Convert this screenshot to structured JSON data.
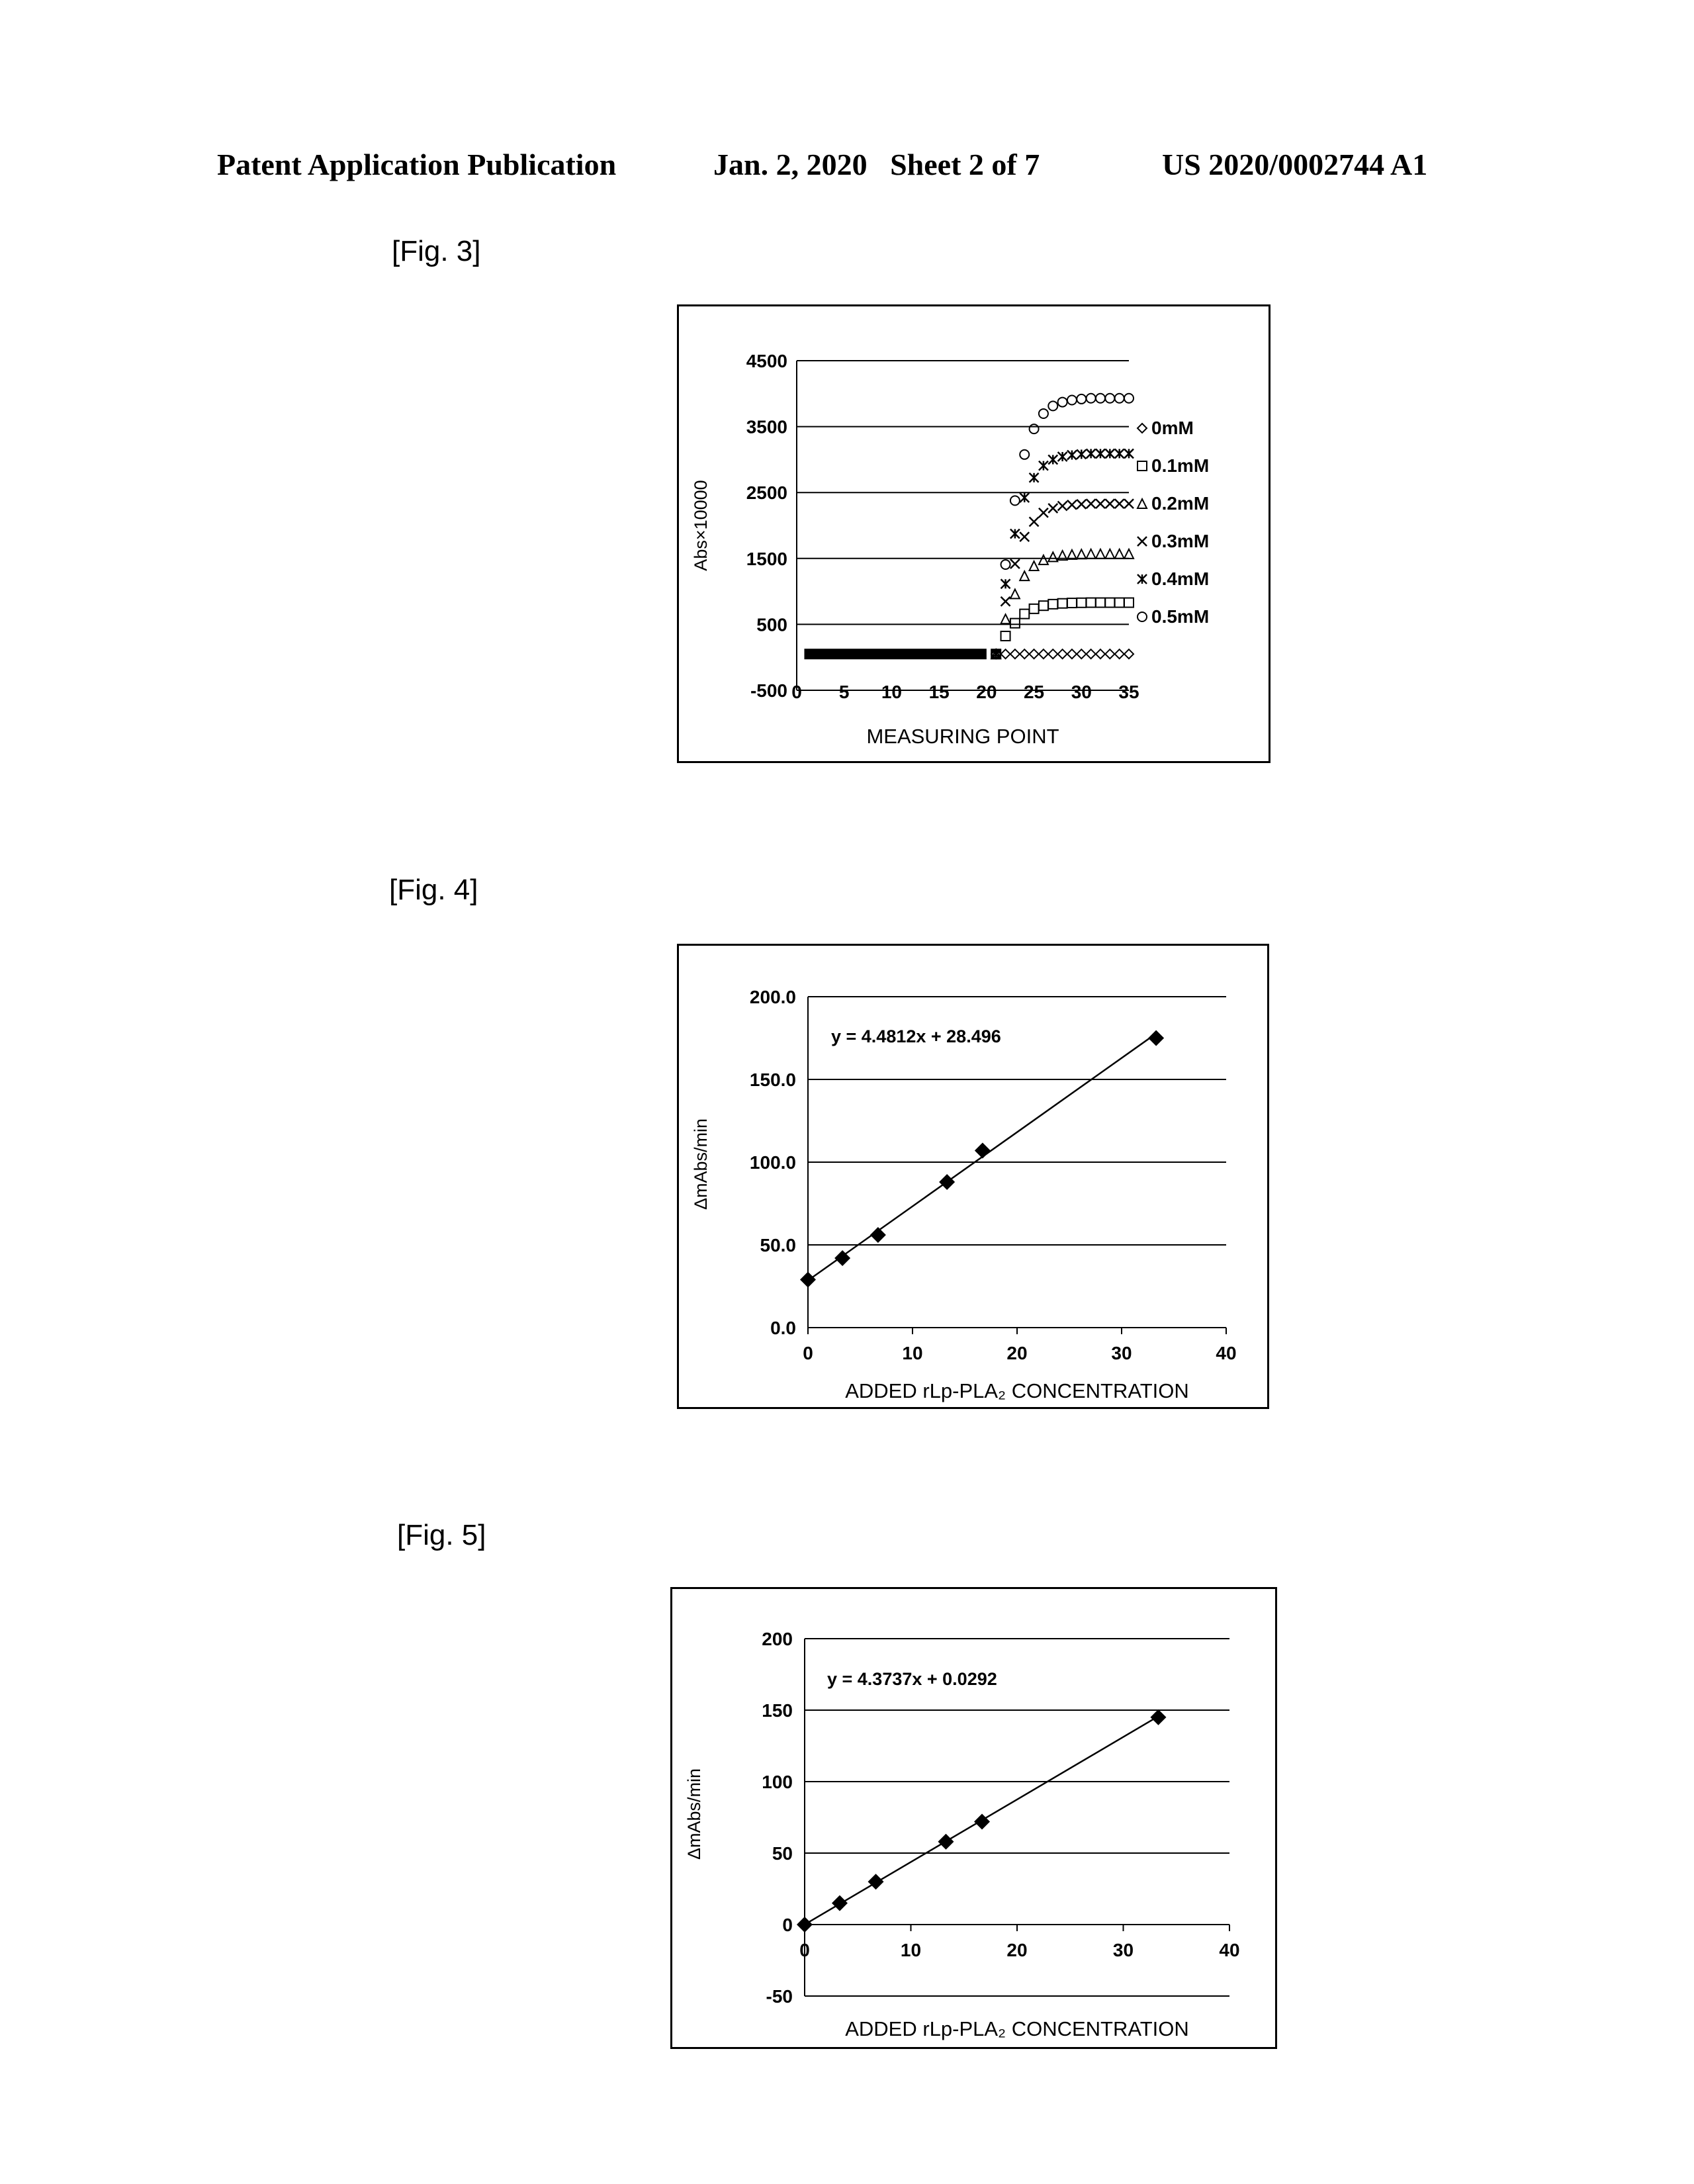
{
  "header": {
    "publication": "Patent Application Publication",
    "date_sheet": "Jan. 2, 2020   Sheet 2 of 7",
    "number": "US 2020/0002744 A1"
  },
  "figures": [
    {
      "label": "[Fig. 3]"
    },
    {
      "label": "[Fig. 4]"
    },
    {
      "label": "[Fig. 5]"
    }
  ],
  "chart_data": [
    {
      "type": "scatter",
      "xlabel": "MEASURING POINT",
      "ylabel": "Abs×10000",
      "xlim": [
        0,
        35
      ],
      "ylim": [
        -500,
        4500
      ],
      "xticks": [
        0,
        5,
        10,
        15,
        20,
        25,
        30,
        35
      ],
      "yticks": [
        -500,
        500,
        1500,
        2500,
        3500,
        4500
      ],
      "grid": "horizontal",
      "legend_position": "right",
      "series": [
        {
          "name": "0mM",
          "marker": "diamond",
          "plateau": 50
        },
        {
          "name": "0.1mM",
          "marker": "square",
          "plateau": 830
        },
        {
          "name": "0.2mM",
          "marker": "triangle",
          "plateau": 1570
        },
        {
          "name": "0.3mM",
          "marker": "x",
          "plateau": 2330
        },
        {
          "name": "0.4mM",
          "marker": "star",
          "plateau": 3090
        },
        {
          "name": "0.5mM",
          "marker": "circle",
          "plateau": 3930
        }
      ],
      "baseline_until": 20,
      "baseline_value": 50
    },
    {
      "type": "scatter",
      "xlabel": "ADDED rLp-PLA₂ CONCENTRATION",
      "ylabel": "ΔmAbs/min",
      "xlim": [
        0,
        40
      ],
      "ylim": [
        0,
        200
      ],
      "xticks": [
        "0",
        "10",
        "20",
        "30",
        "40"
      ],
      "yticks": [
        "0.0",
        "50.0",
        "100.0",
        "150.0",
        "200.0"
      ],
      "grid": "horizontal",
      "equation": "y = 4.4812x + 28.496",
      "trendline": {
        "slope": 4.4812,
        "intercept": 28.496
      },
      "points": [
        [
          0,
          29
        ],
        [
          3.3,
          42
        ],
        [
          6.7,
          56
        ],
        [
          13.3,
          88
        ],
        [
          16.7,
          107
        ],
        [
          33.3,
          175
        ]
      ]
    },
    {
      "type": "scatter",
      "xlabel": "ADDED rLp-PLA₂ CONCENTRATION",
      "ylabel": "ΔmAbs/min",
      "xlim": [
        0,
        40
      ],
      "ylim": [
        -50,
        200
      ],
      "xticks": [
        "0",
        "10",
        "20",
        "30",
        "40"
      ],
      "yticks": [
        "-50",
        "0",
        "50",
        "100",
        "150",
        "200"
      ],
      "grid": "horizontal",
      "equation": "y = 4.3737x + 0.0292",
      "trendline": {
        "slope": 4.3737,
        "intercept": 0.0292
      },
      "points": [
        [
          0,
          0
        ],
        [
          3.3,
          15
        ],
        [
          6.7,
          30
        ],
        [
          13.3,
          58
        ],
        [
          16.7,
          72
        ],
        [
          33.3,
          145
        ]
      ]
    }
  ]
}
